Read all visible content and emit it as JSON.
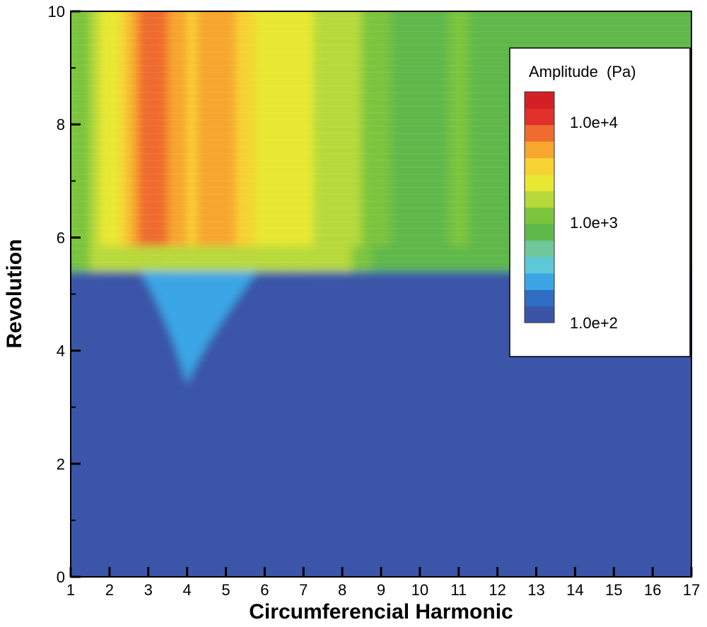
{
  "chart_data": {
    "type": "heatmap",
    "title": "",
    "xlabel": "Circumferencial Harmonic",
    "ylabel": "Revolution",
    "xlim": [
      1,
      17
    ],
    "ylim": [
      0,
      10
    ],
    "x_ticks": [
      1,
      2,
      3,
      4,
      5,
      6,
      7,
      8,
      9,
      10,
      11,
      12,
      13,
      14,
      15,
      16,
      17
    ],
    "y_ticks": [
      0,
      2,
      4,
      6,
      8,
      10
    ],
    "colorbar": {
      "title": "Amplitude  (Pa)",
      "scale": "log",
      "range": [
        100,
        20000
      ],
      "tick_values": [
        10000,
        1000,
        100
      ],
      "tick_labels": [
        "1.0e+4",
        "1.0e+3",
        "1.0e+2"
      ],
      "placement": "top-right",
      "colors": [
        "#3a55a8",
        "#2f6cc4",
        "#3aa6e6",
        "#5cc8d8",
        "#6fc79a",
        "#5fb84a",
        "#7cc43e",
        "#b7d93a",
        "#e8e832",
        "#f7d232",
        "#f7a62e",
        "#ef6b2e",
        "#e0302a",
        "#d41f26"
      ]
    },
    "onset_revolution": 5.4,
    "harmonic_profile": [
      {
        "harmonic": 1,
        "amplitude": 1000
      },
      {
        "harmonic": 2,
        "amplitude": 2500
      },
      {
        "harmonic": 3,
        "amplitude": 10000
      },
      {
        "harmonic": 4,
        "amplitude": 4000
      },
      {
        "harmonic": 5,
        "amplitude": 5500
      },
      {
        "harmonic": 6,
        "amplitude": 2500
      },
      {
        "harmonic": 7,
        "amplitude": 2200
      },
      {
        "harmonic": 8,
        "amplitude": 1800
      },
      {
        "harmonic": 9,
        "amplitude": 1000
      },
      {
        "harmonic": 10,
        "amplitude": 900
      },
      {
        "harmonic": 11,
        "amplitude": 1000
      },
      {
        "harmonic": 12,
        "amplitude": 900
      },
      {
        "harmonic": 13,
        "amplitude": 900
      },
      {
        "harmonic": 14,
        "amplitude": 950
      },
      {
        "harmonic": 15,
        "amplitude": 900
      },
      {
        "harmonic": 16,
        "amplitude": 900
      },
      {
        "harmonic": 17,
        "amplitude": 950
      }
    ],
    "precursor_region": {
      "harmonic_range": [
        2.8,
        5.8
      ],
      "revolution_range": [
        3.4,
        5.4
      ],
      "amplitude": 250
    }
  }
}
